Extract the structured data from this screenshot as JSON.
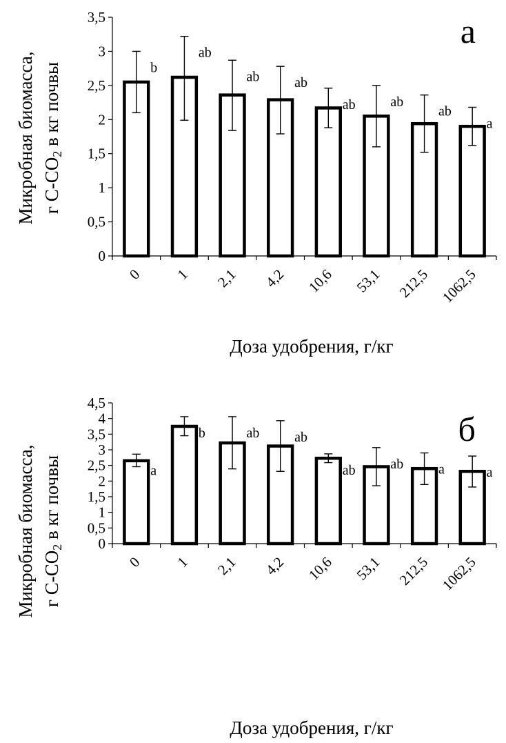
{
  "chart_data": [
    {
      "type": "bar",
      "panel_label": "а",
      "ylabel_line1": "Микробная биомасса,",
      "ylabel_line2_prefix": "г С-СО",
      "ylabel_line2_sub": "2",
      "ylabel_line2_suffix": "  в кг почвы",
      "xlabel": "Доза удобрения, г/кг",
      "ylim": [
        0,
        3.5
      ],
      "yticks": [
        "0",
        "0,5",
        "1",
        "1,5",
        "2",
        "2,5",
        "3",
        "3,5"
      ],
      "categories": [
        "0",
        "1",
        "2,1",
        "4,2",
        "10,6",
        "53,1",
        "212,5",
        "1062,5"
      ],
      "values": [
        2.55,
        2.62,
        2.36,
        2.29,
        2.17,
        2.05,
        1.94,
        1.9
      ],
      "error_high": [
        3.0,
        3.22,
        2.87,
        2.78,
        2.46,
        2.5,
        2.36,
        2.18
      ],
      "error_low": [
        2.1,
        1.99,
        1.84,
        1.79,
        1.88,
        1.6,
        1.52,
        1.62
      ],
      "letters": [
        "b",
        "ab",
        "ab",
        "ab",
        "ab",
        "ab",
        "ab",
        "a"
      ],
      "grid": false,
      "bar_fill": "#ffffff",
      "bar_stroke": "#000000"
    },
    {
      "type": "bar",
      "panel_label": "б",
      "ylabel_line1": "Микробная биомасса,",
      "ylabel_line2_prefix": "г С-СО",
      "ylabel_line2_sub": "2",
      "ylabel_line2_suffix": "  в кг почвы",
      "xlabel": "Доза удобрения, г/кг",
      "ylim": [
        0,
        4.5
      ],
      "yticks": [
        "0",
        "0,5",
        "1",
        "1,5",
        "2",
        "2,5",
        "3",
        "3,5",
        "4",
        "4,5"
      ],
      "categories": [
        "0",
        "1",
        "2,1",
        "4,2",
        "10,6",
        "53,1",
        "212,5",
        "1062,5"
      ],
      "values": [
        2.65,
        3.75,
        3.22,
        3.12,
        2.73,
        2.46,
        2.4,
        2.31
      ],
      "error_high": [
        2.86,
        4.06,
        4.06,
        3.93,
        2.87,
        3.07,
        2.9,
        2.8
      ],
      "error_low": [
        2.46,
        3.45,
        2.39,
        2.31,
        2.59,
        1.85,
        1.89,
        1.81
      ],
      "letters": [
        "a",
        "b",
        "ab",
        "ab",
        "ab",
        "ab",
        "a",
        "a"
      ],
      "grid": false,
      "bar_fill": "#ffffff",
      "bar_stroke": "#000000"
    }
  ]
}
